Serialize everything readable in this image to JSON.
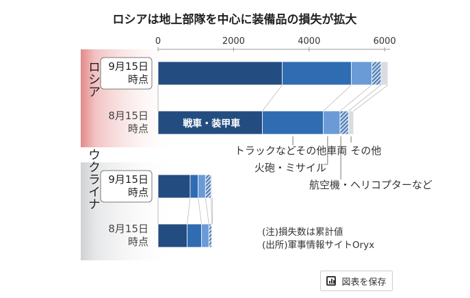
{
  "chart_data": {
    "type": "bar",
    "orientation": "horizontal-stacked",
    "title": "ロシアは地上部隊を中心に装備品の損失が拡大",
    "xlim": [
      0,
      6000
    ],
    "x_ticks": [
      "0",
      "2000",
      "4000",
      "6000"
    ],
    "series": [
      {
        "name": "戦車・装甲車",
        "color": "#234d80",
        "pattern": "solid"
      },
      {
        "name": "トラックなどその他車両",
        "color": "#2f6cb2",
        "pattern": "solid"
      },
      {
        "name": "火砲・ミサイル",
        "color": "#6b9bd6",
        "pattern": "solid"
      },
      {
        "name": "航空機・ヘリコプターなど",
        "color": "#9ec0e8",
        "pattern": "hatch"
      },
      {
        "name": "その他",
        "color": "#d9dde2",
        "pattern": "solid"
      }
    ],
    "groups": [
      {
        "name": "ロシア",
        "bars": [
          {
            "label_line1": "9月15日",
            "label_line2": "時点",
            "highlight": true,
            "values": [
              3290,
              1830,
              543,
              242,
              182
            ]
          },
          {
            "label_line1": "8月15日",
            "label_line2": "時点",
            "highlight": false,
            "values": [
              2765,
              1613,
              442,
              222,
              138
            ]
          }
        ]
      },
      {
        "name": "ウクライナ",
        "bars": [
          {
            "label_line1": "9月15日",
            "label_line2": "時点",
            "highlight": true,
            "values": [
              851,
              211,
              194,
              150,
              30
            ]
          },
          {
            "label_line1": "8月15日",
            "label_line2": "時点",
            "highlight": false,
            "values": [
              772,
              381,
              193,
              78,
              15
            ]
          }
        ]
      }
    ],
    "notes": [
      "(注)損失数は累計値",
      "(出所)軍事情報サイトOryx"
    ]
  },
  "save_button": "図表を保存"
}
